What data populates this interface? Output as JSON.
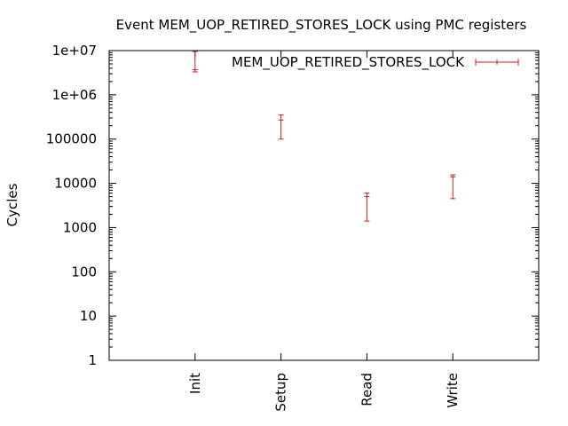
{
  "chart_data": {
    "type": "errorbar",
    "title": "Event MEM_UOP_RETIRED_STORES_LOCK using PMC registers",
    "xlabel": "",
    "ylabel": "Cycles",
    "yscale": "log",
    "ylim": [
      1,
      10000000
    ],
    "yticks": [
      {
        "value": 1,
        "label": "1"
      },
      {
        "value": 10,
        "label": "10"
      },
      {
        "value": 100,
        "label": "100"
      },
      {
        "value": 1000,
        "label": "1000"
      },
      {
        "value": 10000,
        "label": "10000"
      },
      {
        "value": 100000,
        "label": "100000"
      },
      {
        "value": 1000000,
        "label": "1e+06"
      },
      {
        "value": 10000000,
        "label": "1e+07"
      }
    ],
    "categories": [
      "Init",
      "Setup",
      "Read",
      "Write"
    ],
    "legend_position": "top-right",
    "grid": false,
    "series": [
      {
        "name": "MEM_UOP_RETIRED_STORES_LOCK",
        "color": "#cc1f1f",
        "points": [
          {
            "category": "Init",
            "value": 3700000,
            "low": 3300000,
            "high": 9500000
          },
          {
            "category": "Setup",
            "value": 270000,
            "low": 100000,
            "high": 350000
          },
          {
            "category": "Read",
            "value": 5000,
            "low": 1400,
            "high": 6000
          },
          {
            "category": "Write",
            "value": 14000,
            "low": 4500,
            "high": 15500
          }
        ]
      }
    ]
  }
}
